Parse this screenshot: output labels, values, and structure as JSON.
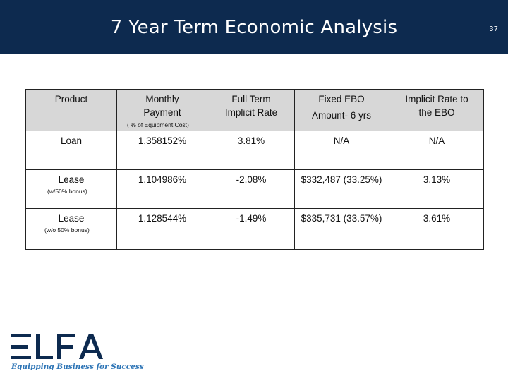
{
  "header": {
    "title": "7 Year Term Economic Analysis",
    "page_number": "37",
    "bg_color": "#0d2a4f"
  },
  "table": {
    "header_bg": "#d7d7d7",
    "columns": [
      {
        "label": "Product"
      },
      {
        "label": "Monthly\nPayment",
        "note": "( % of Equipment Cost)"
      },
      {
        "label": "Full Term\nImplicit Rate"
      },
      {
        "label": "Fixed EBO\nAmount- 6 yrs"
      },
      {
        "label": "Implicit Rate to\nthe EBO"
      }
    ],
    "rows": [
      {
        "product": "Loan",
        "note": "",
        "monthly": "1.358152%",
        "full_term": "3.81%",
        "ebo": "N/A",
        "ebo_rate": "N/A"
      },
      {
        "product": "Lease",
        "note": "(w/50% bonus)",
        "monthly": "1.104986%",
        "full_term": "-2.08%",
        "ebo": "$332,487 (33.25%)",
        "ebo_rate": "3.13%"
      },
      {
        "product": "Lease",
        "note": "(w/o 50% bonus)",
        "monthly": "1.128544%",
        "full_term": "-1.49%",
        "ebo": "$335,731 (33.57%)",
        "ebo_rate": "3.61%"
      }
    ]
  },
  "logo": {
    "name": "ELFA",
    "tagline": "Equipping Business for Success",
    "color": "#0d2a4f",
    "tagline_color": "#2e75b6"
  }
}
